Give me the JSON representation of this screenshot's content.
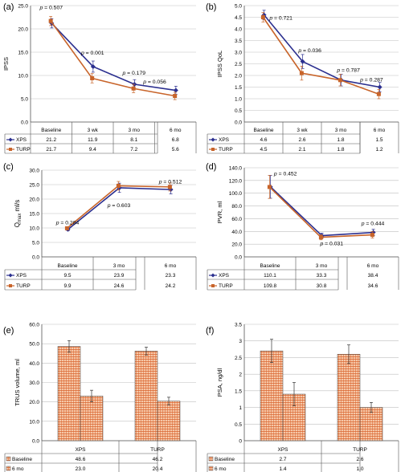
{
  "colors": {
    "xps": "#2b2f8f",
    "turp": "#c8642a",
    "bar_fill": "#f6c8a8",
    "bar_hatch": "#d9602a",
    "grid": "#bfbfbf"
  },
  "chart_data": [
    {
      "panel": "(a)",
      "type": "line",
      "ylabel": "IPSS",
      "categories": [
        "Baseline",
        "3 wk",
        "3 mo",
        "6 mo"
      ],
      "ylim": [
        0,
        25
      ],
      "yticks": [
        "0.0",
        "5.0",
        "10.0",
        "15.0",
        "20.0",
        "25.0"
      ],
      "grid": true,
      "series": [
        {
          "name": "XPS",
          "values": [
            21.2,
            11.9,
            8.1,
            6.8
          ],
          "errors": [
            1.0,
            1.2,
            1.0,
            0.9
          ]
        },
        {
          "name": "TURP",
          "values": [
            21.7,
            9.4,
            7.2,
            5.6
          ],
          "errors": [
            1.0,
            1.0,
            0.9,
            0.8
          ]
        }
      ],
      "annotations": [
        {
          "text": "p = 0.507",
          "x": 0,
          "y": 24.2
        },
        {
          "text": "p = 0.001",
          "x": 1,
          "y": 14.5
        },
        {
          "text": "p = 0.179",
          "x": 2,
          "y": 10.2
        },
        {
          "text": "p = 0.056",
          "x": 2.5,
          "y": 8.3
        }
      ],
      "table": [
        [
          "XPS",
          "21.2",
          "11.9",
          "8.1",
          "6.8"
        ],
        [
          "TURP",
          "21.7",
          "9.4",
          "7.2",
          "5.6"
        ]
      ]
    },
    {
      "panel": "(b)",
      "type": "line",
      "ylabel": "IPSS QoL",
      "categories": [
        "Baseline",
        "3 wk",
        "3 mo",
        "6 mo"
      ],
      "ylim": [
        0,
        5
      ],
      "yticks": [
        "0.0",
        "0.5",
        "1.0",
        "1.5",
        "2.0",
        "2.5",
        "3.0",
        "3.5",
        "4.0",
        "4.5",
        "5.0"
      ],
      "grid": true,
      "series": [
        {
          "name": "XPS",
          "values": [
            4.6,
            2.6,
            1.8,
            1.5
          ],
          "errors": [
            0.2,
            0.3,
            0.25,
            0.2
          ]
        },
        {
          "name": "TURP",
          "values": [
            4.5,
            2.1,
            1.8,
            1.2
          ],
          "errors": [
            0.2,
            0.3,
            0.25,
            0.2
          ]
        }
      ],
      "annotations": [
        {
          "text": "p = 0.721",
          "x": 0.45,
          "y": 4.4
        },
        {
          "text": "p = 0.036",
          "x": 1.2,
          "y": 3.0
        },
        {
          "text": "p = 0.787",
          "x": 2.2,
          "y": 2.15
        },
        {
          "text": "p = 0.287",
          "x": 2.8,
          "y": 1.75
        }
      ],
      "table": [
        [
          "XPS",
          "4.6",
          "2.6",
          "1.8",
          "1.5"
        ],
        [
          "TURP",
          "4.5",
          "2.1",
          "1.8",
          "1.2"
        ]
      ]
    },
    {
      "panel": "(c)",
      "type": "line",
      "ylabel": "Qmax ml/s",
      "categories": [
        "Baseline",
        "3 mo",
        "6 mo"
      ],
      "ylim": [
        0,
        30
      ],
      "yticks": [
        "0.0",
        "5.0",
        "10.0",
        "15.0",
        "20.0",
        "25.0",
        "30.0"
      ],
      "grid": true,
      "series": [
        {
          "name": "XPS",
          "values": [
            9.5,
            23.9,
            23.3
          ],
          "errors": [
            0.5,
            1.6,
            1.5
          ]
        },
        {
          "name": "TURP",
          "values": [
            9.9,
            24.6,
            24.2
          ],
          "errors": [
            0.5,
            1.5,
            1.4
          ]
        }
      ],
      "annotations": [
        {
          "text": "p = 0.284",
          "x": 0,
          "y": 11.2
        },
        {
          "text": "p = 0.603",
          "x": 1,
          "y": 17.2
        },
        {
          "text": "p = 0.512",
          "x": 2,
          "y": 25.4
        }
      ],
      "table": [
        [
          "XPS",
          "9.5",
          "23.9",
          "23.3"
        ],
        [
          "TURP",
          "9.9",
          "24.6",
          "24.2"
        ]
      ]
    },
    {
      "panel": "(d)",
      "type": "line",
      "ylabel": "PVR, ml",
      "categories": [
        "Baseline",
        "3 mo",
        "6 mo"
      ],
      "ylim": [
        0,
        140
      ],
      "yticks": [
        "0.0",
        "20.0",
        "40.0",
        "60.0",
        "80.0",
        "100.0",
        "120.0",
        "140.0"
      ],
      "grid": true,
      "series": [
        {
          "name": "XPS",
          "values": [
            110.1,
            33.3,
            38.4
          ],
          "errors": [
            18,
            4,
            5
          ]
        },
        {
          "name": "TURP",
          "values": [
            109.8,
            30.8,
            34.6
          ],
          "errors": [
            18,
            4,
            5
          ]
        }
      ],
      "annotations": [
        {
          "text": "p = 0.452",
          "x": 0.3,
          "y": 128
        },
        {
          "text": "p = 0.444",
          "x": 2,
          "y": 50
        },
        {
          "text": "p = 0.031",
          "x": 1.2,
          "y": 18
        }
      ],
      "table": [
        [
          "XPS",
          "110.1",
          "33.3",
          "38.4"
        ],
        [
          "TURP",
          "109.8",
          "30.8",
          "34.6"
        ]
      ]
    },
    {
      "panel": "(e)",
      "type": "bar",
      "ylabel": "TRUS volume, ml",
      "categories": [
        "XPS",
        "TURP"
      ],
      "ylim": [
        0,
        60
      ],
      "yticks": [
        "0.0",
        "10.0",
        "20.0",
        "30.0",
        "40.0",
        "50.0",
        "60.0"
      ],
      "grid": true,
      "series": [
        {
          "name": "Baseline",
          "values": [
            48.6,
            46.2
          ],
          "errors": [
            3.0,
            2.0
          ]
        },
        {
          "name": "6 mo",
          "values": [
            23.0,
            20.4
          ],
          "errors": [
            3.0,
            2.0
          ]
        }
      ],
      "table": [
        [
          "Baseline",
          "48.6",
          "46.2"
        ],
        [
          "6 mo",
          "23.0",
          "20.4"
        ]
      ]
    },
    {
      "panel": "(f)",
      "type": "bar",
      "ylabel": "PSA, ng/dl",
      "categories": [
        "XPS",
        "TURP"
      ],
      "ylim": [
        0,
        3.5
      ],
      "yticks": [
        "0",
        "0.5",
        "1",
        "1.5",
        "2",
        "2.5",
        "3",
        "3.5"
      ],
      "grid": true,
      "series": [
        {
          "name": "Baseline",
          "values": [
            2.7,
            2.6
          ],
          "errors": [
            0.35,
            0.28
          ]
        },
        {
          "name": "6 mo",
          "values": [
            1.4,
            1.0
          ],
          "errors": [
            0.35,
            0.15
          ]
        }
      ],
      "table": [
        [
          "Baseline",
          "2.7",
          "2.6"
        ],
        [
          "6 mo",
          "1.4",
          "1.0"
        ]
      ]
    }
  ]
}
